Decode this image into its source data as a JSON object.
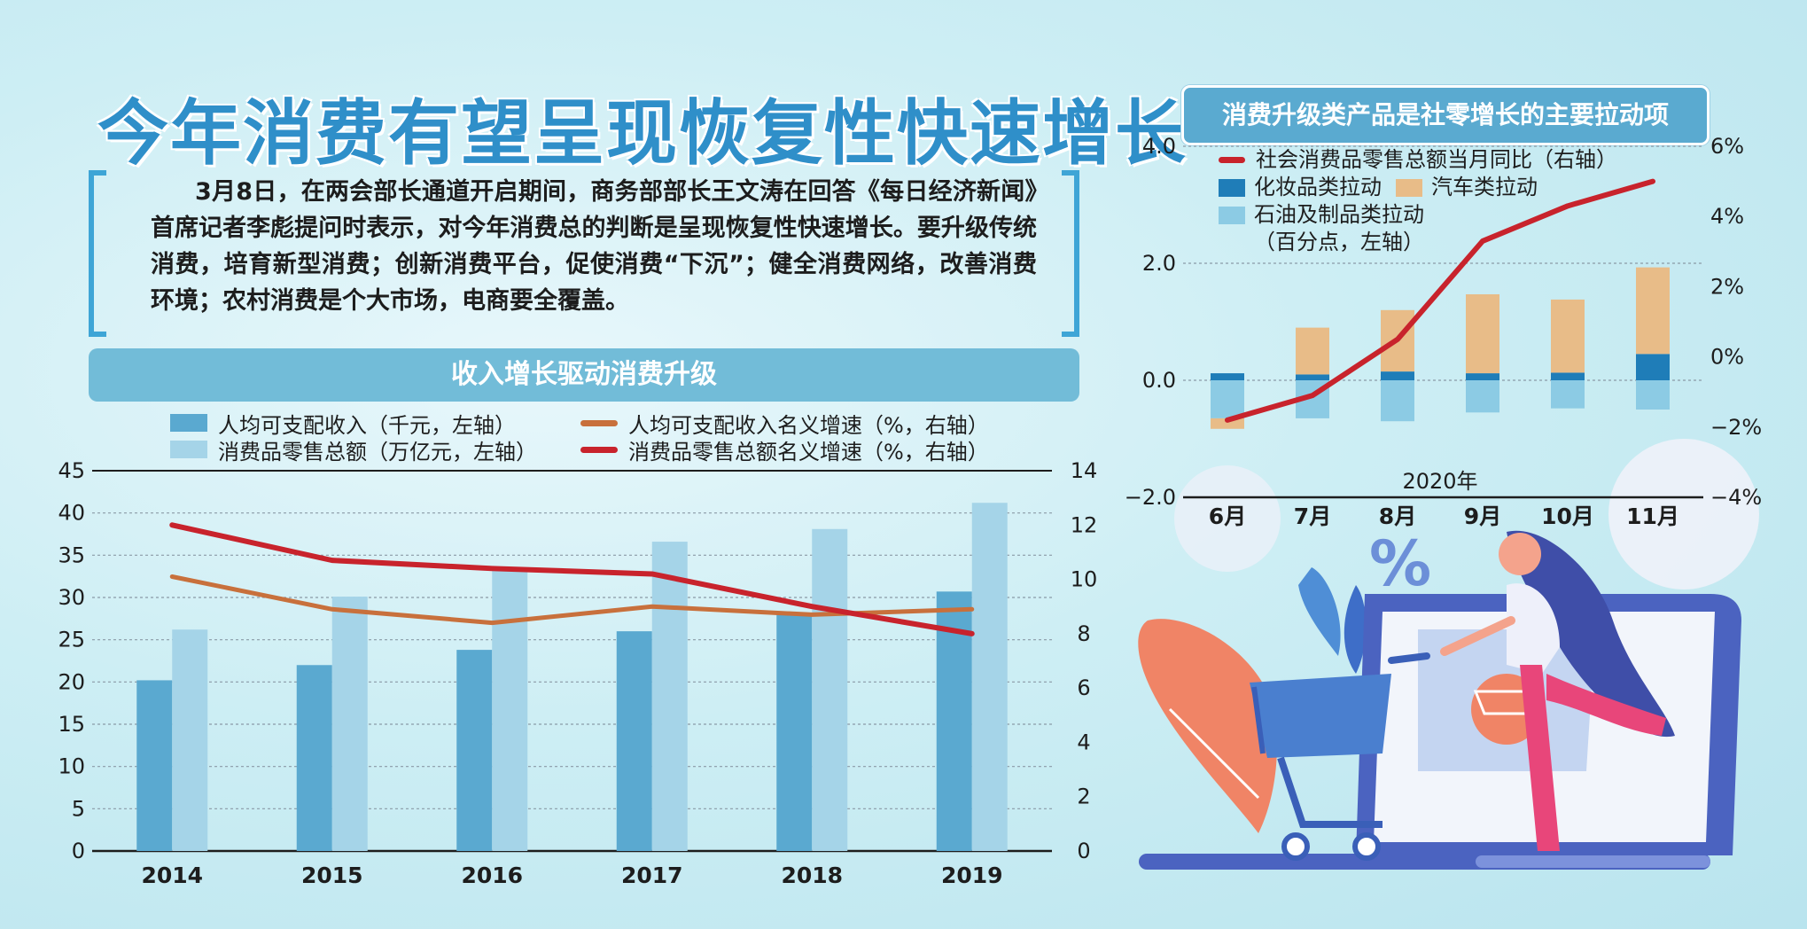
{
  "headline": "今年消费有望呈现恢复性快速增长",
  "intro": "3月8日，在两会部长通道开启期间，商务部部长王文涛在回答《每日经济新闻》首席记者李彪提问时表示，对今年消费总的判断是呈现恢复性快速增长。要升级传统消费，培育新型消费；创新消费平台，促使消费“下沉”；健全消费网络，改善消费环境；农村消费是个大市场，电商要全覆盖。",
  "colors": {
    "income_bar": "#5aa9d0",
    "retail_bar": "#a5d4e8",
    "income_growth_line": "#c8703c",
    "retail_growth_line": "#c8232c",
    "cosmetics_bar": "#1f7db8",
    "auto_bar": "#e8bc88",
    "oil_bar": "#8ccbe4",
    "yoy_line": "#c8232c"
  },
  "chart_data": [
    {
      "type": "bar",
      "title": "收入增长驱动消费升级",
      "categories": [
        "2014",
        "2015",
        "2016",
        "2017",
        "2018",
        "2019"
      ],
      "series": [
        {
          "name": "人均可支配收入（千元，左轴）",
          "kind": "bar",
          "axis": "left",
          "values": [
            20.2,
            22.0,
            23.8,
            26.0,
            28.2,
            30.7
          ]
        },
        {
          "name": "消费品零售总额（万亿元，左轴）",
          "kind": "bar",
          "axis": "left",
          "values": [
            26.2,
            30.1,
            33.2,
            36.6,
            38.1,
            41.2
          ]
        },
        {
          "name": "人均可支配收入名义增速（%，右轴）",
          "kind": "line",
          "axis": "right",
          "values": [
            10.1,
            8.9,
            8.4,
            9.0,
            8.7,
            8.9
          ]
        },
        {
          "name": "消费品零售总额名义增速（%，右轴）",
          "kind": "line",
          "axis": "right",
          "values": [
            12.0,
            10.7,
            10.4,
            10.2,
            9.0,
            8.0
          ]
        }
      ],
      "left_axis": {
        "min": 0,
        "max": 45,
        "ticks": [
          "0",
          "5",
          "10",
          "15",
          "20",
          "25",
          "30",
          "35",
          "40",
          "45"
        ]
      },
      "right_axis": {
        "min": 0,
        "max": 14,
        "ticks": [
          "0",
          "2",
          "4",
          "6",
          "8",
          "10",
          "12",
          "14"
        ]
      },
      "grid": true,
      "legend_position": "top"
    },
    {
      "type": "bar",
      "stacked": true,
      "title": "消费升级类产品是社零增长的主要拉动项",
      "xlabel": "2020年",
      "categories": [
        "6月",
        "7月",
        "8月",
        "9月",
        "10月",
        "11月"
      ],
      "series": [
        {
          "name": "化妆品类拉动",
          "kind": "bar",
          "axis": "left",
          "values": [
            0.12,
            0.1,
            0.15,
            0.12,
            0.13,
            0.45
          ]
        },
        {
          "name": "汽车类拉动",
          "kind": "bar",
          "axis": "left",
          "values": [
            -0.18,
            0.8,
            1.05,
            1.35,
            1.25,
            1.48
          ]
        },
        {
          "name": "石油及制品类拉动",
          "kind": "bar",
          "axis": "left",
          "values": [
            -0.65,
            -0.65,
            -0.7,
            -0.55,
            -0.48,
            -0.5
          ]
        },
        {
          "name": "社会消费品零售总额当月同比（右轴）",
          "kind": "line",
          "axis": "right",
          "values": [
            -1.8,
            -1.1,
            0.5,
            3.3,
            4.3,
            5.0
          ]
        }
      ],
      "left_axis": {
        "min": -2.0,
        "max": 4.0,
        "ticks": [
          "−2.0",
          "0.0",
          "2.0",
          "4.0"
        ]
      },
      "right_axis": {
        "min": -4,
        "max": 6,
        "ticks": [
          "−4%",
          "−2%",
          "0%",
          "2%",
          "4%",
          "6%"
        ]
      },
      "legend_note": "（百分点，左轴）",
      "grid": true,
      "legend_position": "top-left"
    }
  ]
}
